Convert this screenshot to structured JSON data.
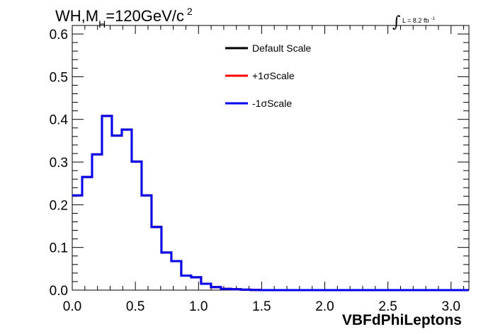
{
  "title": {
    "prefix": "WH,M",
    "subscript": "H",
    "suffix": "=120GeV/c",
    "superscript": "2"
  },
  "luminosity": {
    "integral_symbol": "∫",
    "text": "L = 8.2 fb",
    "superscript": "-1"
  },
  "chart_data": {
    "type": "histogram",
    "title": "WH,MH=120GeV/c2",
    "xlabel": "VBFdPhiLeptons",
    "ylabel": "",
    "xlim": [
      0,
      3.1416
    ],
    "ylim": [
      0,
      0.62
    ],
    "x_ticks": [
      "0.0",
      "0.5",
      "1.0",
      "1.5",
      "2.0",
      "2.5",
      "3.0"
    ],
    "y_ticks": [
      "0.0",
      "0.1",
      "0.2",
      "0.3",
      "0.4",
      "0.5",
      "0.6"
    ],
    "x_tick_values": [
      0,
      0.5,
      1.0,
      1.5,
      2.0,
      2.5,
      3.0
    ],
    "y_tick_values": [
      0,
      0.1,
      0.2,
      0.3,
      0.4,
      0.5,
      0.6
    ],
    "bin_width": 0.0785,
    "bin_edges_start": 0,
    "series": [
      {
        "name": "Default Scale",
        "color": "#000000",
        "values": [
          0.222,
          0.265,
          0.318,
          0.408,
          0.362,
          0.376,
          0.301,
          0.222,
          0.148,
          0.088,
          0.068,
          0.034,
          0.03,
          0.015,
          0.007,
          0.003,
          0.002,
          0.001,
          0.0005,
          0,
          0,
          0,
          0,
          0,
          0,
          0,
          0,
          0,
          0,
          0,
          0,
          0,
          0,
          0,
          0,
          0,
          0,
          0,
          0,
          0
        ]
      },
      {
        "name": "+1σScale",
        "color": "#ff0000",
        "values": [
          0.222,
          0.265,
          0.318,
          0.408,
          0.362,
          0.376,
          0.301,
          0.222,
          0.148,
          0.088,
          0.068,
          0.034,
          0.03,
          0.015,
          0.007,
          0.003,
          0.002,
          0.001,
          0.0005,
          0,
          0,
          0,
          0,
          0,
          0,
          0,
          0,
          0,
          0,
          0,
          0,
          0,
          0,
          0,
          0,
          0,
          0,
          0,
          0,
          0
        ]
      },
      {
        "name": "-1σScale",
        "color": "#0000ee",
        "values": [
          0.222,
          0.265,
          0.318,
          0.408,
          0.362,
          0.376,
          0.301,
          0.222,
          0.148,
          0.088,
          0.068,
          0.034,
          0.03,
          0.015,
          0.007,
          0.003,
          0.002,
          0.001,
          0.0005,
          0,
          0,
          0,
          0,
          0,
          0,
          0,
          0,
          0,
          0,
          0,
          0,
          0,
          0,
          0,
          0,
          0,
          0,
          0,
          0,
          0
        ]
      }
    ],
    "legend": {
      "position": "top-center",
      "entries": [
        "Default Scale",
        "+1σScale",
        "-1σScale"
      ]
    },
    "grid": false
  }
}
